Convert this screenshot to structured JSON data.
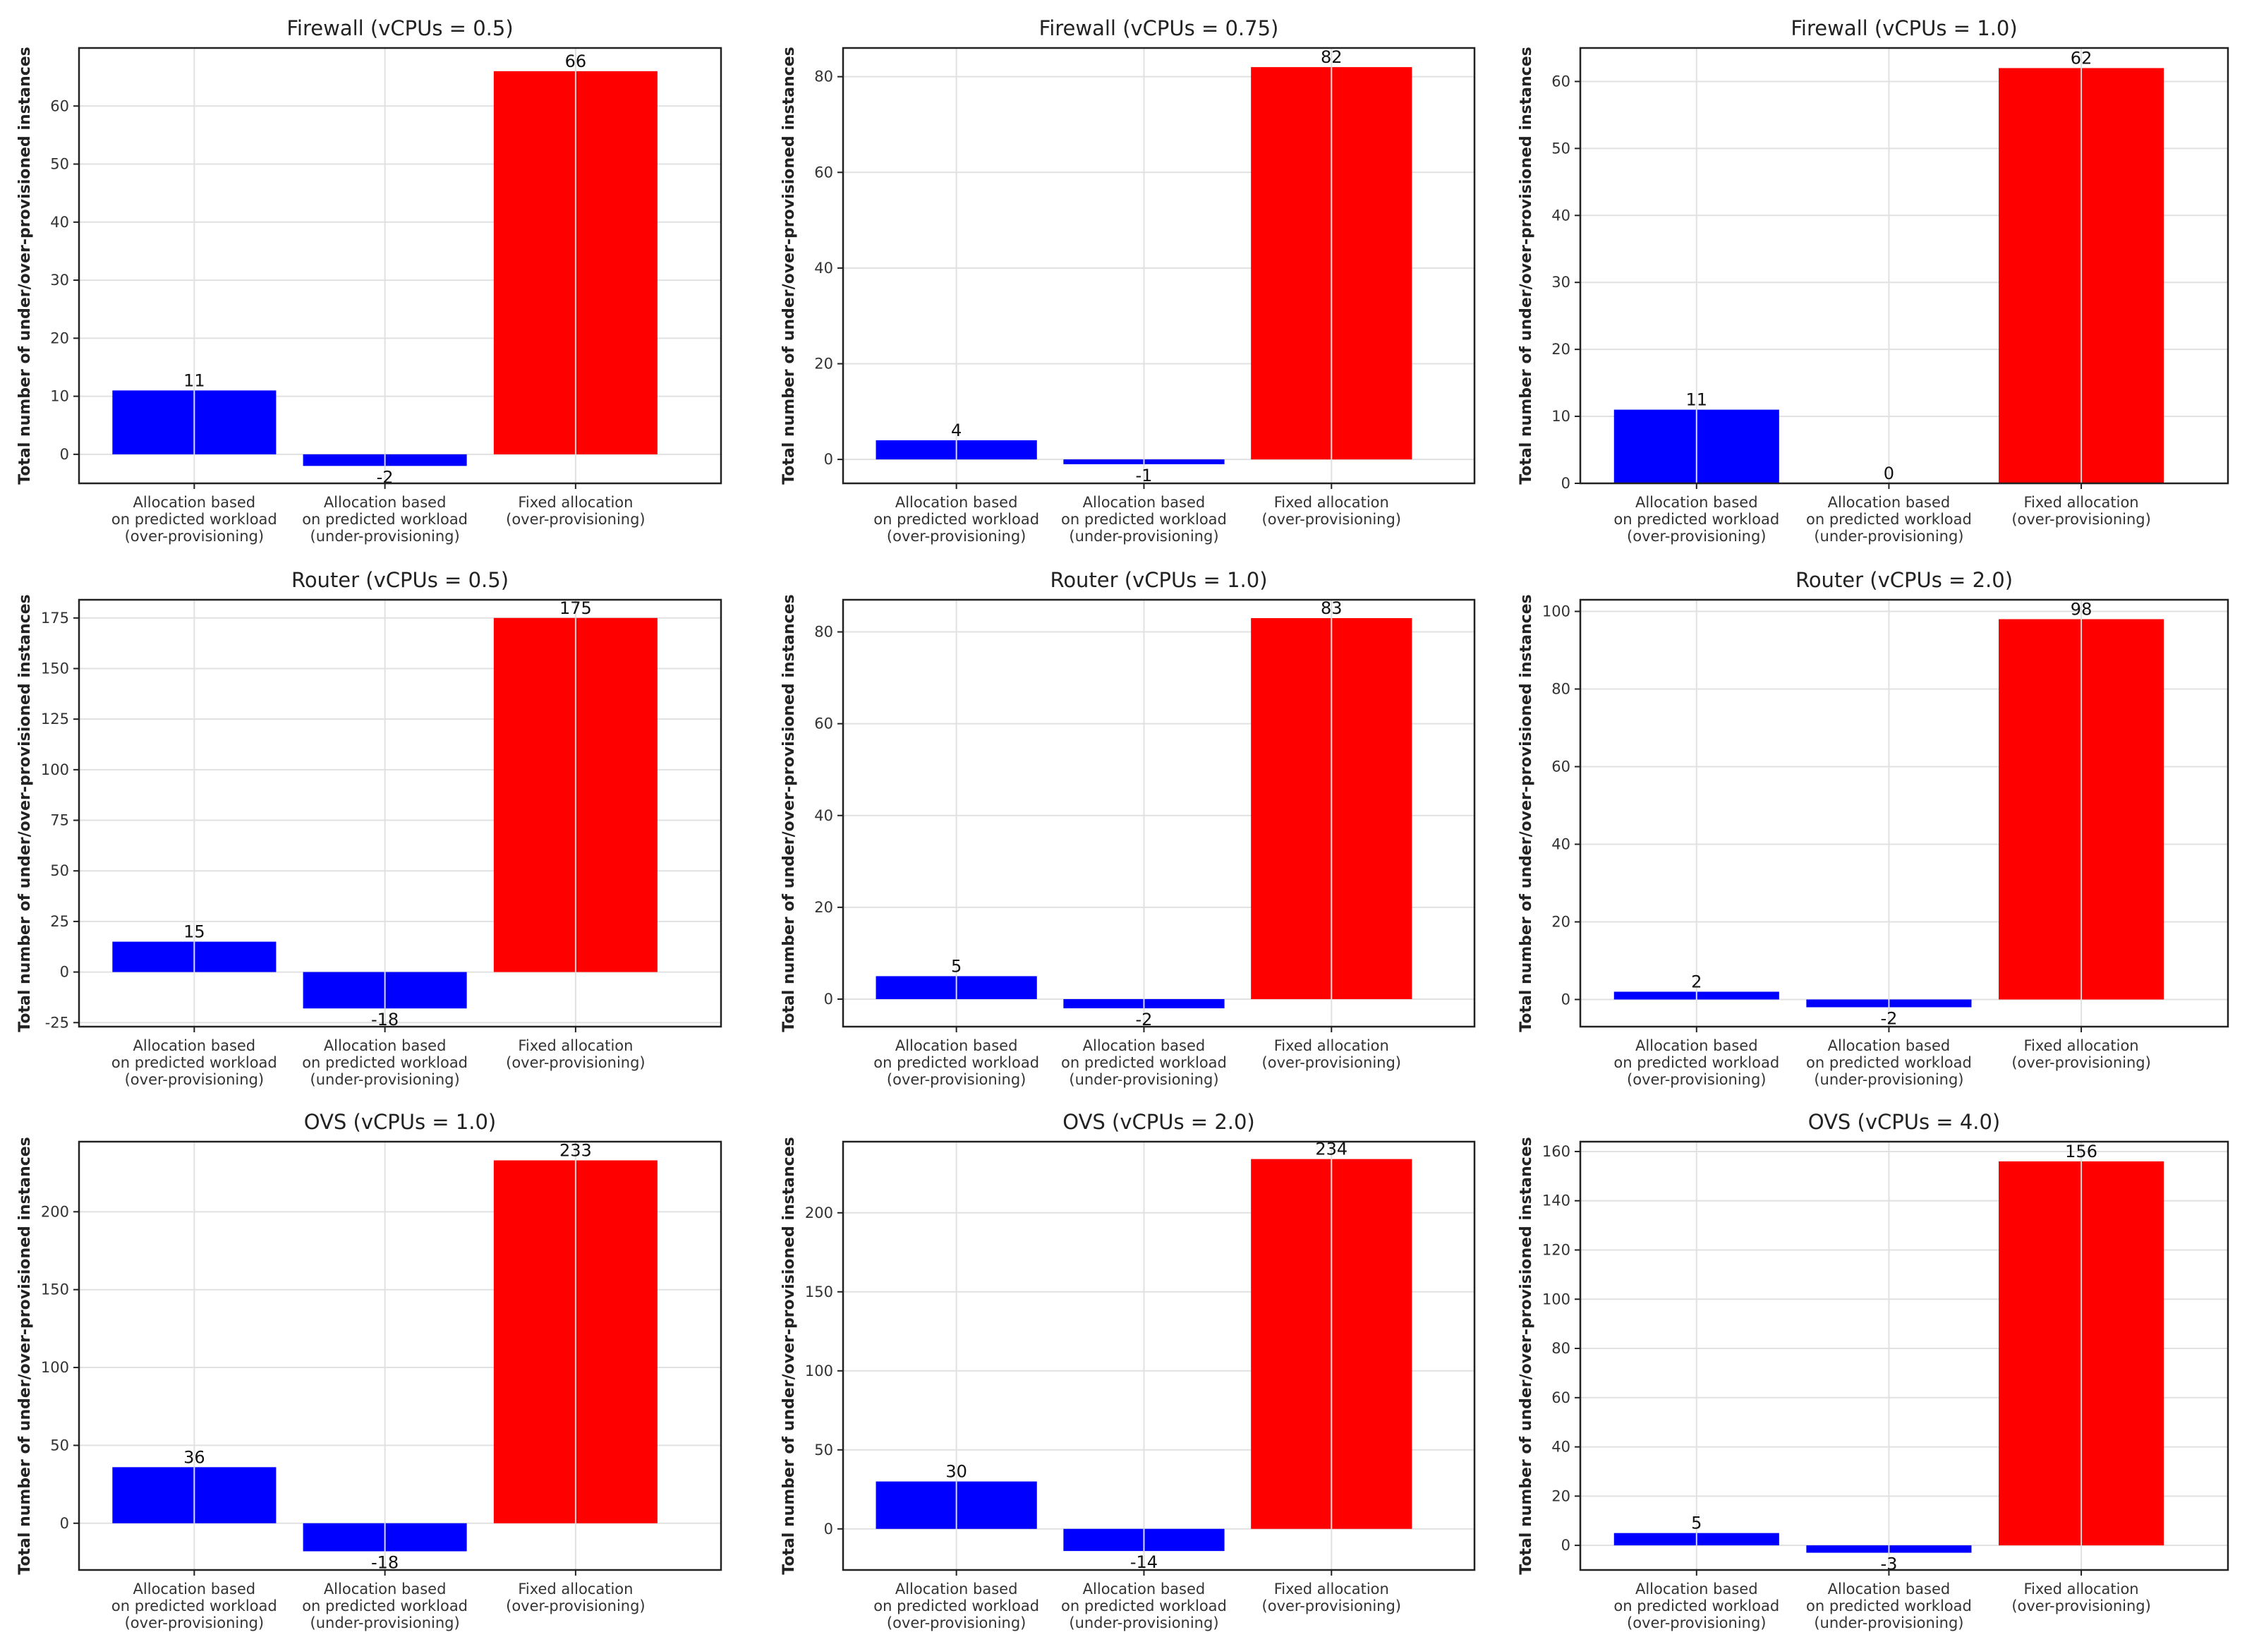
{
  "y_axis_label": "Total number of under/over-provisioned instances",
  "category_lines": [
    [
      "Allocation based",
      "on predicted workload",
      "(over-provisioning)"
    ],
    [
      "Allocation based",
      "on predicted workload",
      "(under-provisioning)"
    ],
    [
      "Fixed allocation",
      "(over-provisioning)"
    ]
  ],
  "colors": {
    "prediction": "#0000ff",
    "fixed": "#ff0000",
    "grid": "#e1e1e1",
    "axis": "#222222"
  },
  "chart_data": [
    {
      "type": "bar",
      "title": "Firewall (vCPUs = 0.5)",
      "categories": [
        "Allocation based on predicted workload (over-provisioning)",
        "Allocation based on predicted workload (under-provisioning)",
        "Fixed allocation (over-provisioning)"
      ],
      "values": [
        11,
        -2,
        66
      ],
      "ylabel": "Total number of under/over-provisioned instances",
      "ylim": [
        -5,
        70
      ],
      "yticks": [
        0,
        10,
        20,
        30,
        40,
        50,
        60
      ],
      "value_labels": [
        "11",
        "-2",
        "66"
      ],
      "grid": true
    },
    {
      "type": "bar",
      "title": "Firewall (vCPUs = 0.75)",
      "categories": [
        "Allocation based on predicted workload (over-provisioning)",
        "Allocation based on predicted workload (under-provisioning)",
        "Fixed allocation (over-provisioning)"
      ],
      "values": [
        4,
        -1,
        82
      ],
      "ylabel": "Total number of under/over-provisioned instances",
      "ylim": [
        -5,
        86
      ],
      "yticks": [
        0,
        20,
        40,
        60,
        80
      ],
      "value_labels": [
        "4",
        "-1",
        "82"
      ],
      "grid": true
    },
    {
      "type": "bar",
      "title": "Firewall (vCPUs = 1.0)",
      "categories": [
        "Allocation based on predicted workload (over-provisioning)",
        "Allocation based on predicted workload (under-provisioning)",
        "Fixed allocation (over-provisioning)"
      ],
      "values": [
        11,
        0,
        62
      ],
      "ylabel": "Total number of under/over-provisioned instances",
      "ylim": [
        0,
        65
      ],
      "yticks": [
        0,
        10,
        20,
        30,
        40,
        50,
        60
      ],
      "value_labels": [
        "11",
        "0",
        "62"
      ],
      "grid": true
    },
    {
      "type": "bar",
      "title": "Router (vCPUs = 0.5)",
      "categories": [
        "Allocation based on predicted workload (over-provisioning)",
        "Allocation based on predicted workload (under-provisioning)",
        "Fixed allocation (over-provisioning)"
      ],
      "values": [
        15,
        -18,
        175
      ],
      "ylabel": "Total number of under/over-provisioned instances",
      "ylim": [
        -27,
        184
      ],
      "yticks": [
        -25,
        0,
        25,
        50,
        75,
        100,
        125,
        150,
        175
      ],
      "value_labels": [
        "15",
        "-18",
        "175"
      ],
      "grid": true
    },
    {
      "type": "bar",
      "title": "Router (vCPUs = 1.0)",
      "categories": [
        "Allocation based on predicted workload (over-provisioning)",
        "Allocation based on predicted workload (under-provisioning)",
        "Fixed allocation (over-provisioning)"
      ],
      "values": [
        5,
        -2,
        83
      ],
      "ylabel": "Total number of under/over-provisioned instances",
      "ylim": [
        -6,
        87
      ],
      "yticks": [
        0,
        20,
        40,
        60,
        80
      ],
      "value_labels": [
        "5",
        "-2",
        "83"
      ],
      "grid": true
    },
    {
      "type": "bar",
      "title": "Router (vCPUs = 2.0)",
      "categories": [
        "Allocation based on predicted workload (over-provisioning)",
        "Allocation based on predicted workload (under-provisioning)",
        "Fixed allocation (over-provisioning)"
      ],
      "values": [
        2,
        -2,
        98
      ],
      "ylabel": "Total number of under/over-provisioned instances",
      "ylim": [
        -7,
        103
      ],
      "yticks": [
        0,
        20,
        40,
        60,
        80,
        100
      ],
      "value_labels": [
        "2",
        "-2",
        "98"
      ],
      "grid": true
    },
    {
      "type": "bar",
      "title": "OVS (vCPUs = 1.0)",
      "categories": [
        "Allocation based on predicted workload (over-provisioning)",
        "Allocation based on predicted workload (under-provisioning)",
        "Fixed allocation (over-provisioning)"
      ],
      "values": [
        36,
        -18,
        233
      ],
      "ylabel": "Total number of under/over-provisioned instances",
      "ylim": [
        -30,
        245
      ],
      "yticks": [
        0,
        50,
        100,
        150,
        200
      ],
      "value_labels": [
        "36",
        "-18",
        "233"
      ],
      "grid": true
    },
    {
      "type": "bar",
      "title": "OVS (vCPUs = 2.0)",
      "categories": [
        "Allocation based on predicted workload (over-provisioning)",
        "Allocation based on predicted workload (under-provisioning)",
        "Fixed allocation (over-provisioning)"
      ],
      "values": [
        30,
        -14,
        234
      ],
      "ylabel": "Total number of under/over-provisioned instances",
      "ylim": [
        -26,
        245
      ],
      "yticks": [
        0,
        50,
        100,
        150,
        200
      ],
      "value_labels": [
        "30",
        "-14",
        "234"
      ],
      "grid": true
    },
    {
      "type": "bar",
      "title": "OVS (vCPUs = 4.0)",
      "categories": [
        "Allocation based on predicted workload (over-provisioning)",
        "Allocation based on predicted workload (under-provisioning)",
        "Fixed allocation (over-provisioning)"
      ],
      "values": [
        5,
        -3,
        156
      ],
      "ylabel": "Total number of under/over-provisioned instances",
      "ylim": [
        -10,
        164
      ],
      "yticks": [
        0,
        20,
        40,
        60,
        80,
        100,
        120,
        140,
        160
      ],
      "value_labels": [
        "5",
        "-3",
        "156"
      ],
      "grid": true
    }
  ]
}
